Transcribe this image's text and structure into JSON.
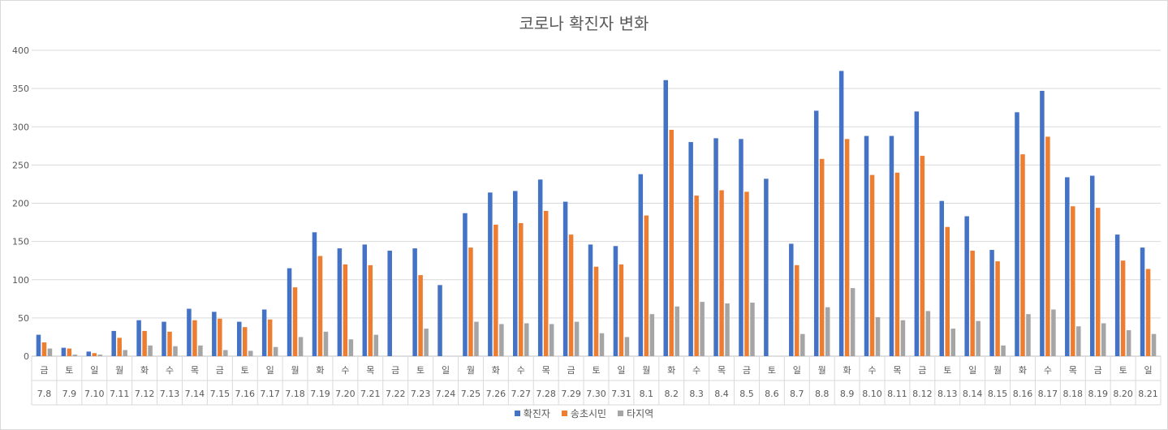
{
  "chart_data": {
    "type": "bar",
    "title": "코로나 확진자 변화",
    "days": [
      "금",
      "토",
      "일",
      "월",
      "화",
      "수",
      "목",
      "금",
      "토",
      "일",
      "월",
      "화",
      "수",
      "목",
      "금",
      "토",
      "일",
      "월",
      "화",
      "수",
      "목",
      "금",
      "토",
      "일",
      "월",
      "화",
      "수",
      "목",
      "금",
      "토",
      "일",
      "월",
      "화",
      "수",
      "목",
      "금",
      "토",
      "일",
      "월",
      "화",
      "수",
      "목",
      "금",
      "토",
      "일"
    ],
    "categories": [
      "7.8",
      "7.9",
      "7.10",
      "7.11",
      "7.12",
      "7.13",
      "7.14",
      "7.15",
      "7.16",
      "7.17",
      "7.18",
      "7.19",
      "7.20",
      "7.21",
      "7.22",
      "7.23",
      "7.24",
      "7.25",
      "7.26",
      "7.27",
      "7.28",
      "7.29",
      "7.30",
      "7.31",
      "8.1",
      "8.2",
      "8.3",
      "8.4",
      "8.5",
      "8.6",
      "8.7",
      "8.8",
      "8.9",
      "8.10",
      "8.11",
      "8.12",
      "8.13",
      "8.14",
      "8.15",
      "8.16",
      "8.17",
      "8.18",
      "8.19",
      "8.20",
      "8.21"
    ],
    "ylim": [
      0,
      400
    ],
    "yticks": [
      0,
      50,
      100,
      150,
      200,
      250,
      300,
      350,
      400
    ],
    "grid": true,
    "legend_position": "bottom",
    "series": [
      {
        "name": "확진자",
        "color": "#4472c4",
        "values": [
          28,
          11,
          6,
          33,
          47,
          45,
          62,
          58,
          45,
          61,
          115,
          162,
          141,
          146,
          138,
          141,
          93,
          187,
          214,
          216,
          231,
          202,
          146,
          144,
          238,
          361,
          280,
          285,
          284,
          232,
          147,
          321,
          373,
          288,
          288,
          320,
          203,
          183,
          139,
          319,
          347,
          234,
          236,
          159,
          142
        ]
      },
      {
        "name": "송초시민",
        "color": "#ed7d31",
        "values": [
          18,
          10,
          4,
          24,
          33,
          32,
          47,
          49,
          38,
          48,
          90,
          131,
          120,
          119,
          0,
          106,
          0,
          142,
          172,
          174,
          190,
          159,
          117,
          120,
          184,
          296,
          210,
          217,
          215,
          0,
          119,
          258,
          284,
          237,
          240,
          262,
          169,
          138,
          124,
          264,
          287,
          196,
          194,
          125,
          114
        ]
      },
      {
        "name": "타지역",
        "color": "#a5a5a5",
        "values": [
          10,
          2,
          2,
          8,
          14,
          13,
          14,
          8,
          7,
          12,
          25,
          32,
          22,
          28,
          0,
          36,
          0,
          45,
          42,
          43,
          42,
          45,
          30,
          25,
          55,
          65,
          71,
          69,
          70,
          0,
          29,
          64,
          89,
          51,
          47,
          59,
          36,
          46,
          14,
          55,
          61,
          39,
          43,
          34,
          29
        ]
      }
    ]
  }
}
